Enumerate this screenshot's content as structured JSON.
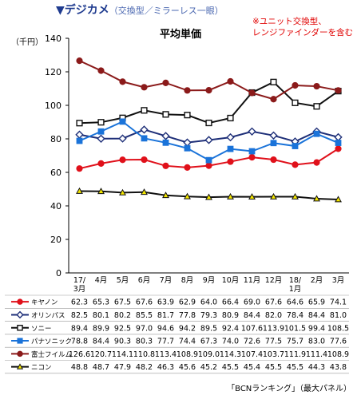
{
  "header": {
    "marker": "▼",
    "title": "デジカメ",
    "subtitle": "（交換型／ミラーレス一眼）"
  },
  "note": {
    "line1": "※ユニット交換型、",
    "line2": "レンジファインダーを含む"
  },
  "source": "「BCNランキング」（最大パネル）",
  "chart_data": {
    "type": "line",
    "title": "平均単価",
    "ylabel": "（千円）",
    "ylim": [
      0,
      140
    ],
    "yticks": [
      0,
      20,
      40,
      60,
      80,
      100,
      120,
      140
    ],
    "grid": false,
    "legend": "table-below",
    "categories": [
      "17/3月",
      "4月",
      "5月",
      "6月",
      "7月",
      "8月",
      "9月",
      "10月",
      "11月",
      "12月",
      "18/1月",
      "2月",
      "3月"
    ],
    "category_lines": [
      [
        "17/",
        "3月"
      ],
      [
        "4月"
      ],
      [
        "5月"
      ],
      [
        "6月"
      ],
      [
        "7月"
      ],
      [
        "8月"
      ],
      [
        "9月"
      ],
      [
        "10月"
      ],
      [
        "11月"
      ],
      [
        "12月"
      ],
      [
        "18/",
        "1月"
      ],
      [
        "2月"
      ],
      [
        "3月"
      ]
    ],
    "series": [
      {
        "name": "キヤノン",
        "color": "#e0101a",
        "marker": "circle",
        "values": [
          62.3,
          65.3,
          67.5,
          67.6,
          63.9,
          62.9,
          64.0,
          66.4,
          69.0,
          67.6,
          64.6,
          65.9,
          74.1
        ]
      },
      {
        "name": "オリンパス",
        "color": "#1e2f78",
        "marker": "diamond",
        "values": [
          82.5,
          80.1,
          80.2,
          85.5,
          81.7,
          77.8,
          79.3,
          80.9,
          84.4,
          82.0,
          78.4,
          84.4,
          81.0
        ]
      },
      {
        "name": "ソニー",
        "color": "#111111",
        "marker": "square-open",
        "values": [
          89.4,
          89.9,
          92.5,
          97.0,
          94.6,
          94.2,
          89.5,
          92.4,
          107.6,
          113.9,
          101.5,
          99.4,
          108.5
        ]
      },
      {
        "name": "パナソニック",
        "color": "#1a73d9",
        "marker": "square",
        "values": [
          78.8,
          84.4,
          90.3,
          80.3,
          77.7,
          74.4,
          67.3,
          74.0,
          72.6,
          77.5,
          75.7,
          83.0,
          77.6
        ]
      },
      {
        "name": "富士フイルム",
        "color": "#8b1a1a",
        "marker": "circle",
        "values": [
          126.6,
          120.7,
          114.1,
          110.8,
          113.4,
          108.9,
          109.0,
          114.3,
          107.4,
          103.7,
          111.9,
          111.4,
          108.9
        ]
      },
      {
        "name": "ニコン",
        "color": "#111111",
        "marker": "triangle",
        "values": [
          48.8,
          48.7,
          47.9,
          48.2,
          46.3,
          45.6,
          45.2,
          45.5,
          45.4,
          45.5,
          45.5,
          44.3,
          43.8
        ]
      }
    ]
  }
}
